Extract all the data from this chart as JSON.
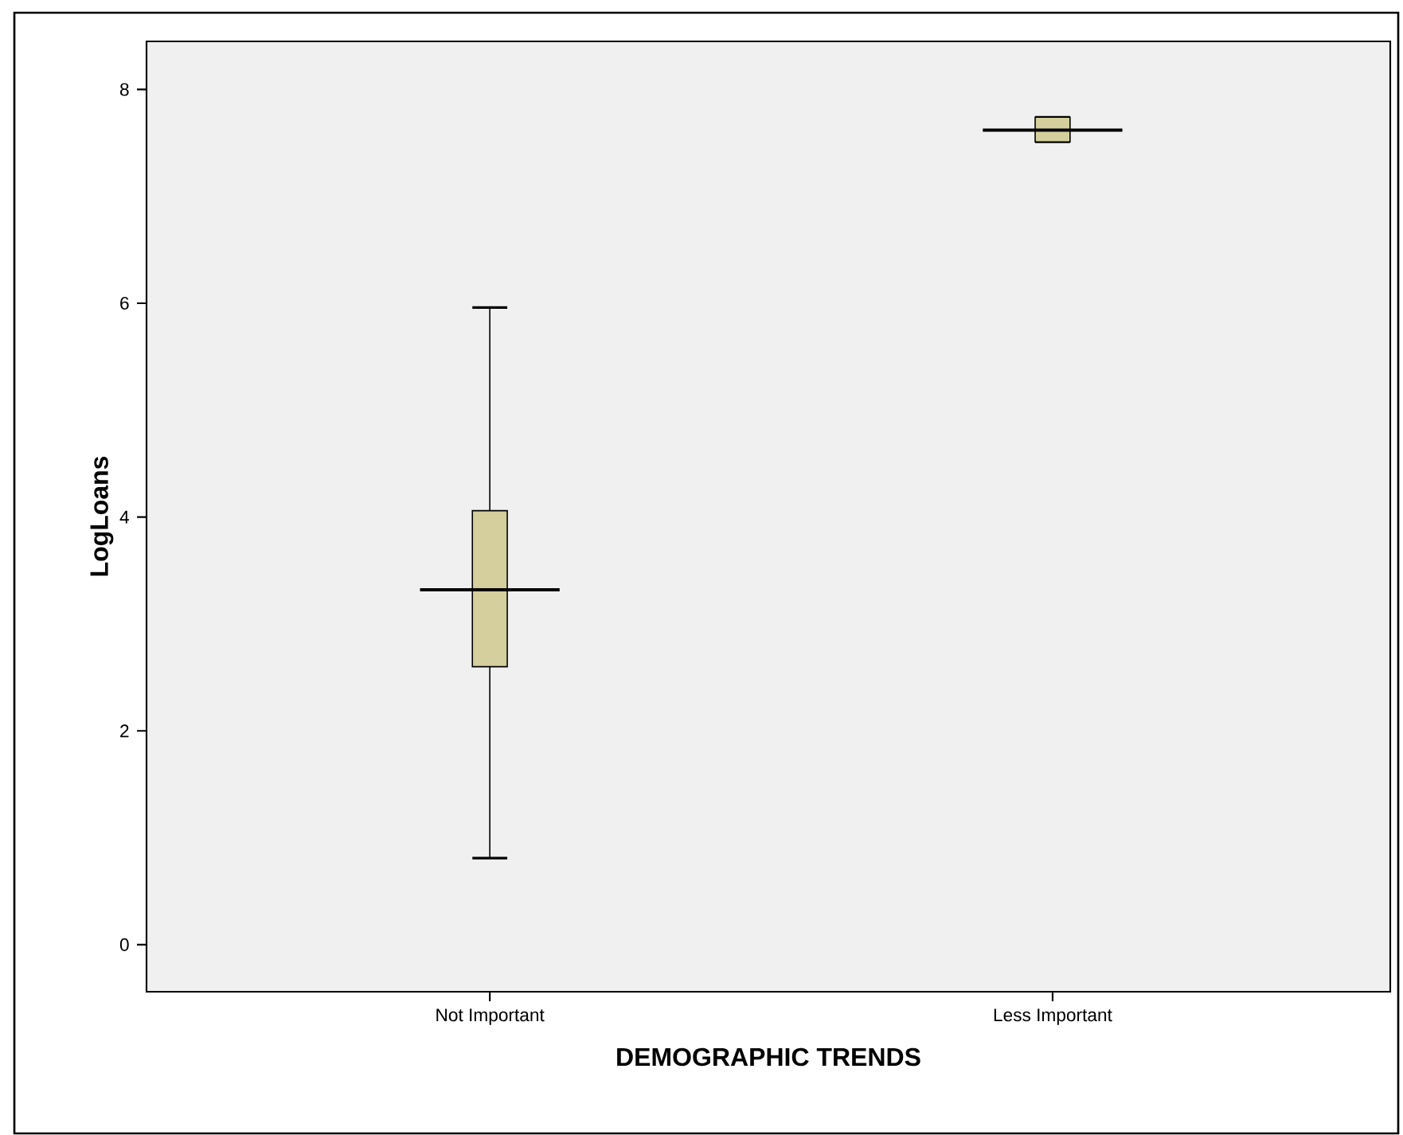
{
  "chart_data": {
    "type": "box",
    "xlabel": "DEMOGRAPHIC TRENDS",
    "ylabel": "LogLoans",
    "categories": [
      "Not Important",
      "Less Important"
    ],
    "series": [
      {
        "color": "#d4cf9c",
        "boxes": [
          {
            "low": 0.81,
            "q1": 2.6,
            "median": 3.32,
            "q3": 4.06,
            "high": 5.96
          },
          {
            "low": 7.51,
            "q1": 7.51,
            "median": 7.62,
            "q3": 7.74,
            "high": 7.74
          }
        ]
      }
    ],
    "ylim": [
      -0.44,
      8.45
    ],
    "yticks": [
      0,
      2,
      4,
      6,
      8
    ],
    "grid": false
  }
}
